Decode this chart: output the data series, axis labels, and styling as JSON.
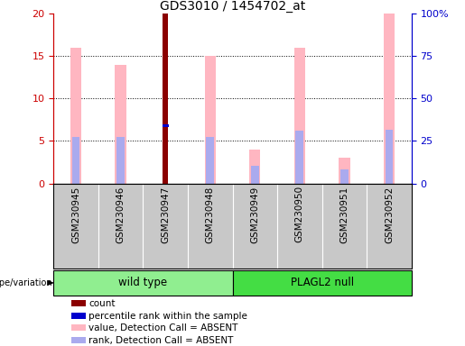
{
  "title": "GDS3010 / 1454702_at",
  "samples": [
    "GSM230945",
    "GSM230946",
    "GSM230947",
    "GSM230948",
    "GSM230949",
    "GSM230950",
    "GSM230951",
    "GSM230952"
  ],
  "ylim_left": [
    0,
    20
  ],
  "ylim_right": [
    0,
    100
  ],
  "yticks_left": [
    0,
    5,
    10,
    15,
    20
  ],
  "yticks_right": [
    0,
    25,
    50,
    75,
    100
  ],
  "yticklabels_right": [
    "0",
    "25",
    "50",
    "75",
    "100%"
  ],
  "count_bar": {
    "index": 2,
    "value": 20,
    "color": "#8B0000"
  },
  "rank_bar": {
    "index": 2,
    "value": 6.8,
    "color": "#0000CD"
  },
  "absent_value_bars": {
    "values": [
      16,
      14,
      15,
      4,
      16,
      3,
      20
    ],
    "indices": [
      0,
      1,
      3,
      4,
      5,
      6,
      7
    ],
    "color": "#FFB6C1"
  },
  "absent_rank_bars": {
    "values": [
      5.5,
      5.5,
      5.5,
      2.1,
      6.2,
      1.7,
      6.3
    ],
    "indices": [
      0,
      1,
      3,
      4,
      5,
      6,
      7
    ],
    "color": "#AAAAEE"
  },
  "pink_bar_width": 0.25,
  "count_bar_width": 0.12,
  "rank_bar_width": 0.12,
  "blue_bar_width": 0.18,
  "grid_color": "black",
  "bg_color": "#C8C8C8",
  "plot_bg_color": "white",
  "left_axis_color": "#CC0000",
  "right_axis_color": "#0000CC",
  "wt_color": "#90EE90",
  "plagl_color": "#44DD44",
  "legend_items": [
    {
      "label": "count",
      "color": "#8B0000"
    },
    {
      "label": "percentile rank within the sample",
      "color": "#0000CD"
    },
    {
      "label": "value, Detection Call = ABSENT",
      "color": "#FFB6C1"
    },
    {
      "label": "rank, Detection Call = ABSENT",
      "color": "#AAAAEE"
    }
  ]
}
